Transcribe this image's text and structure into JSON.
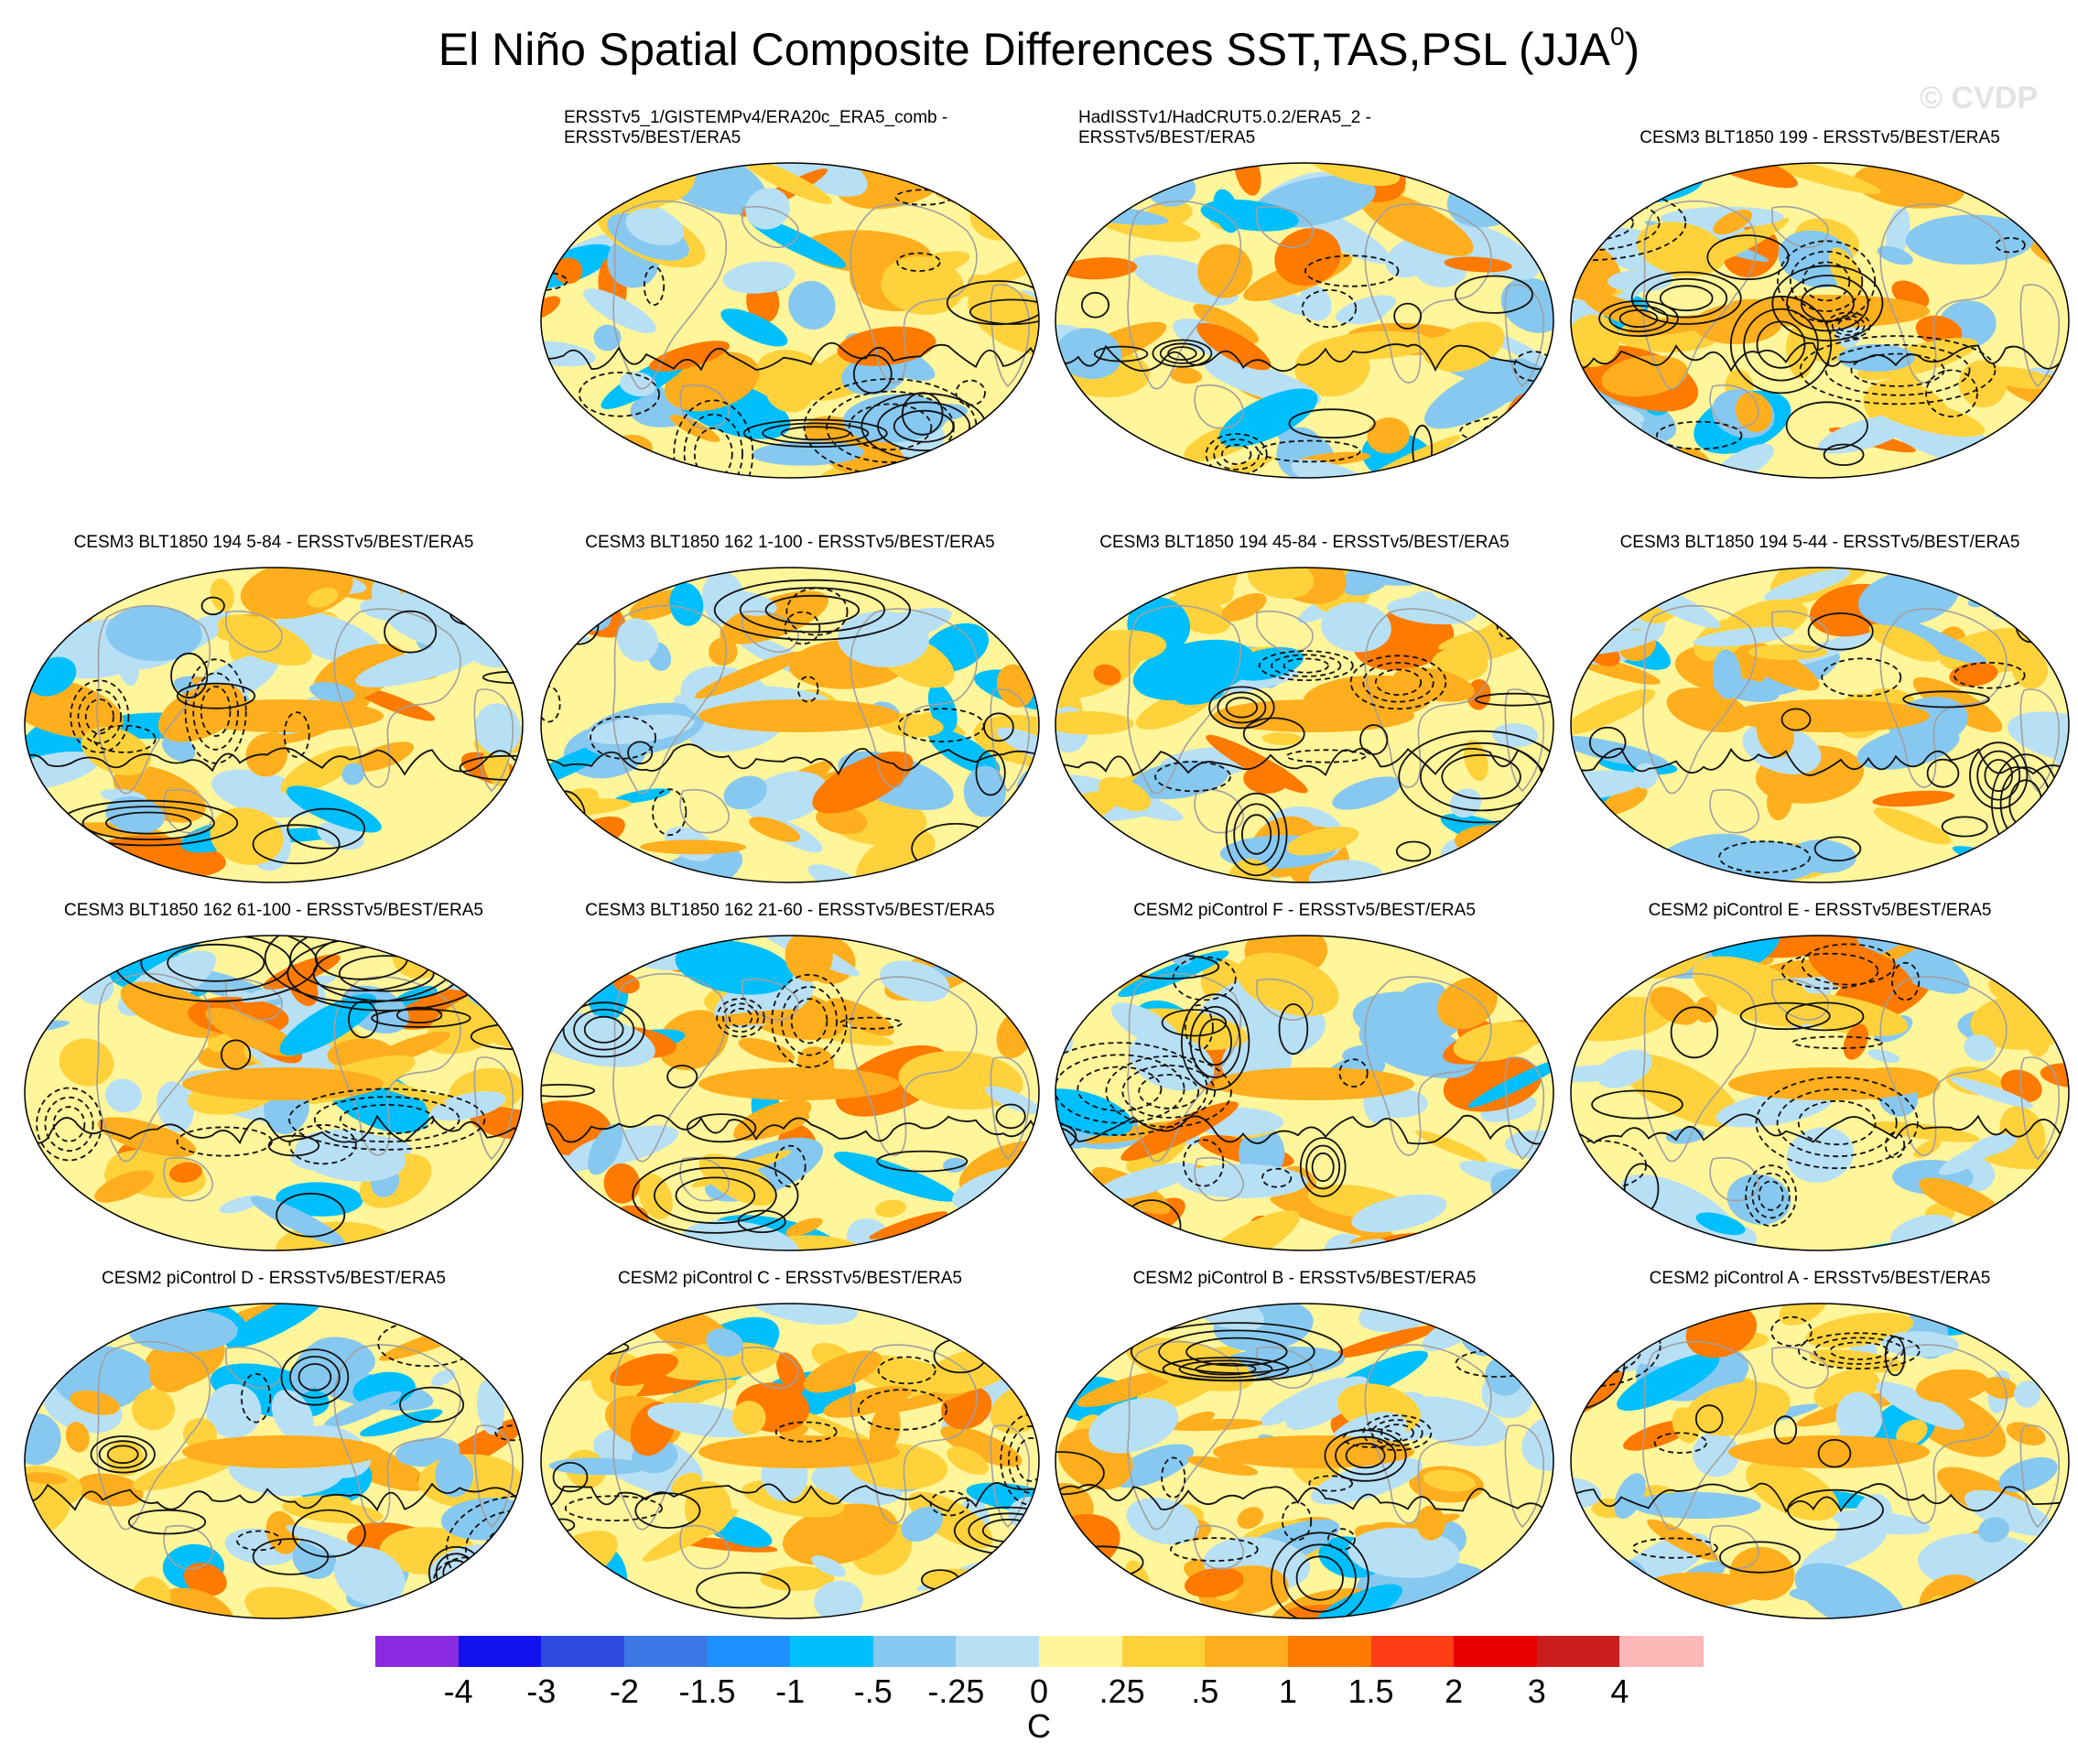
{
  "title": {
    "main": "El Niño Spatial Composite Differences SST,TAS,PSL (JJA",
    "sup": "0",
    "close": ")"
  },
  "watermark": "© CVDP",
  "panels": [
    {
      "id": "p1",
      "title": "ERSSTv5_1/GISTEMPv4/ERA20c_ERA5_comb -\nERSSTv5/BEST/ERA5"
    },
    {
      "id": "p2",
      "title": "HadISSTv1/HadCRUT5.0.2/ERA5_2 -\nERSSTv5/BEST/ERA5"
    },
    {
      "id": "p3",
      "title": "CESM3 BLT1850 199 - ERSSTv5/BEST/ERA5"
    },
    {
      "id": "p4",
      "title": "CESM3 BLT1850 194 5-84 - ERSSTv5/BEST/ERA5"
    },
    {
      "id": "p5",
      "title": "CESM3 BLT1850 162 1-100 - ERSSTv5/BEST/ERA5"
    },
    {
      "id": "p6",
      "title": "CESM3 BLT1850 194 45-84 - ERSSTv5/BEST/ERA5"
    },
    {
      "id": "p7",
      "title": "CESM3 BLT1850 194 5-44 - ERSSTv5/BEST/ERA5"
    },
    {
      "id": "p8",
      "title": "CESM3 BLT1850 162 61-100 - ERSSTv5/BEST/ERA5"
    },
    {
      "id": "p9",
      "title": "CESM3 BLT1850 162 21-60 - ERSSTv5/BEST/ERA5"
    },
    {
      "id": "p10",
      "title": "CESM2 piControl F - ERSSTv5/BEST/ERA5"
    },
    {
      "id": "p11",
      "title": "CESM2 piControl E - ERSSTv5/BEST/ERA5"
    },
    {
      "id": "p12",
      "title": "CESM2 piControl D - ERSSTv5/BEST/ERA5"
    },
    {
      "id": "p13",
      "title": "CESM2 piControl C - ERSSTv5/BEST/ERA5"
    },
    {
      "id": "p14",
      "title": "CESM2 piControl B - ERSSTv5/BEST/ERA5"
    },
    {
      "id": "p15",
      "title": "CESM2 piControl A - ERSSTv5/BEST/ERA5"
    }
  ],
  "colorbar": {
    "colors": [
      "#8a2be2",
      "#1212f0",
      "#2d4be0",
      "#3a78e6",
      "#1e90ff",
      "#00bfff",
      "#87c8f0",
      "#b8e0f5",
      "#fff59a",
      "#ffd23c",
      "#ffae1e",
      "#ff7a00",
      "#ff3c14",
      "#e60000",
      "#c81e1e",
      "#ffb8b8"
    ],
    "labels": [
      "-4",
      "-3",
      "-2",
      "-1.5",
      "-1",
      "-.5",
      "-.25",
      "0",
      ".25",
      ".5",
      "1",
      "1.5",
      "2",
      "3",
      "4"
    ],
    "units": "C"
  }
}
